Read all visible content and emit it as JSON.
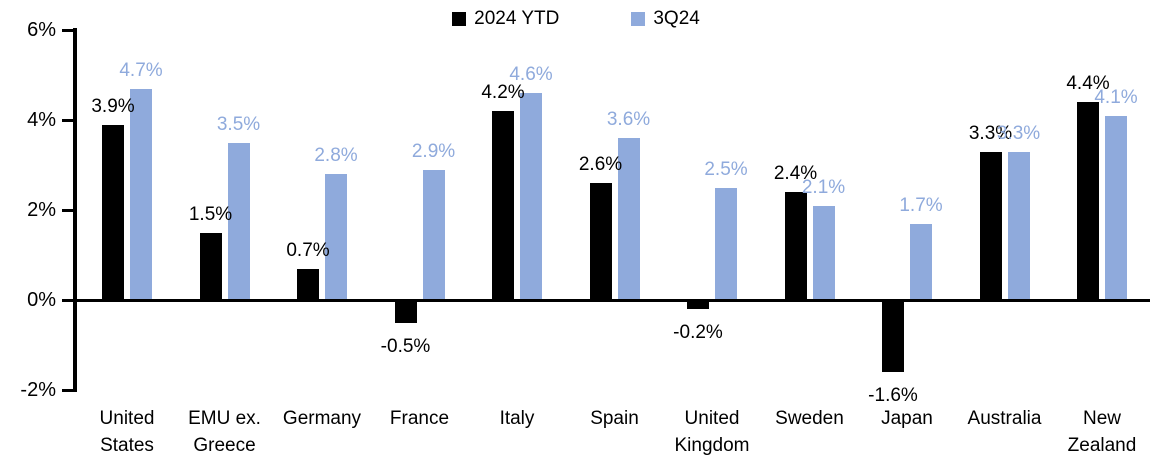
{
  "chart_data": {
    "type": "bar",
    "title": "",
    "categories": [
      "United\nStates",
      "EMU ex.\nGreece",
      "Germany",
      "France",
      "Italy",
      "Spain",
      "United\nKingdom",
      "Sweden",
      "Japan",
      "Australia",
      "New\nZealand"
    ],
    "series": [
      {
        "name": "2024 YTD",
        "color": "#000000",
        "label_color": "#000000",
        "values": [
          3.9,
          1.5,
          0.7,
          -0.5,
          4.2,
          2.6,
          -0.2,
          2.4,
          -1.6,
          3.3,
          4.4
        ],
        "labels": [
          "3.9%",
          "1.5%",
          "0.7%",
          "-0.5%",
          "4.2%",
          "2.6%",
          "-0.2%",
          "2.4%",
          "-1.6%",
          "3.3%",
          "4.4%"
        ]
      },
      {
        "name": "3Q24",
        "color": "#8FAADC",
        "label_color": "#8FAADC",
        "values": [
          4.7,
          3.5,
          2.8,
          2.9,
          4.6,
          3.6,
          2.5,
          2.1,
          1.7,
          3.3,
          4.1
        ],
        "labels": [
          "4.7%",
          "3.5%",
          "2.8%",
          "2.9%",
          "4.6%",
          "3.6%",
          "2.5%",
          "2.1%",
          "1.7%",
          "3.3%",
          "4.1%"
        ]
      }
    ],
    "y_axis": {
      "tick_labels": [
        "6%",
        "4%",
        "2%",
        "0%",
        "-2%"
      ],
      "tick_values": [
        6,
        4,
        2,
        0,
        -2
      ],
      "min": -2,
      "max": 6,
      "grid": false
    },
    "legend": {
      "position": "top-center"
    },
    "axis_color": "#000000"
  }
}
